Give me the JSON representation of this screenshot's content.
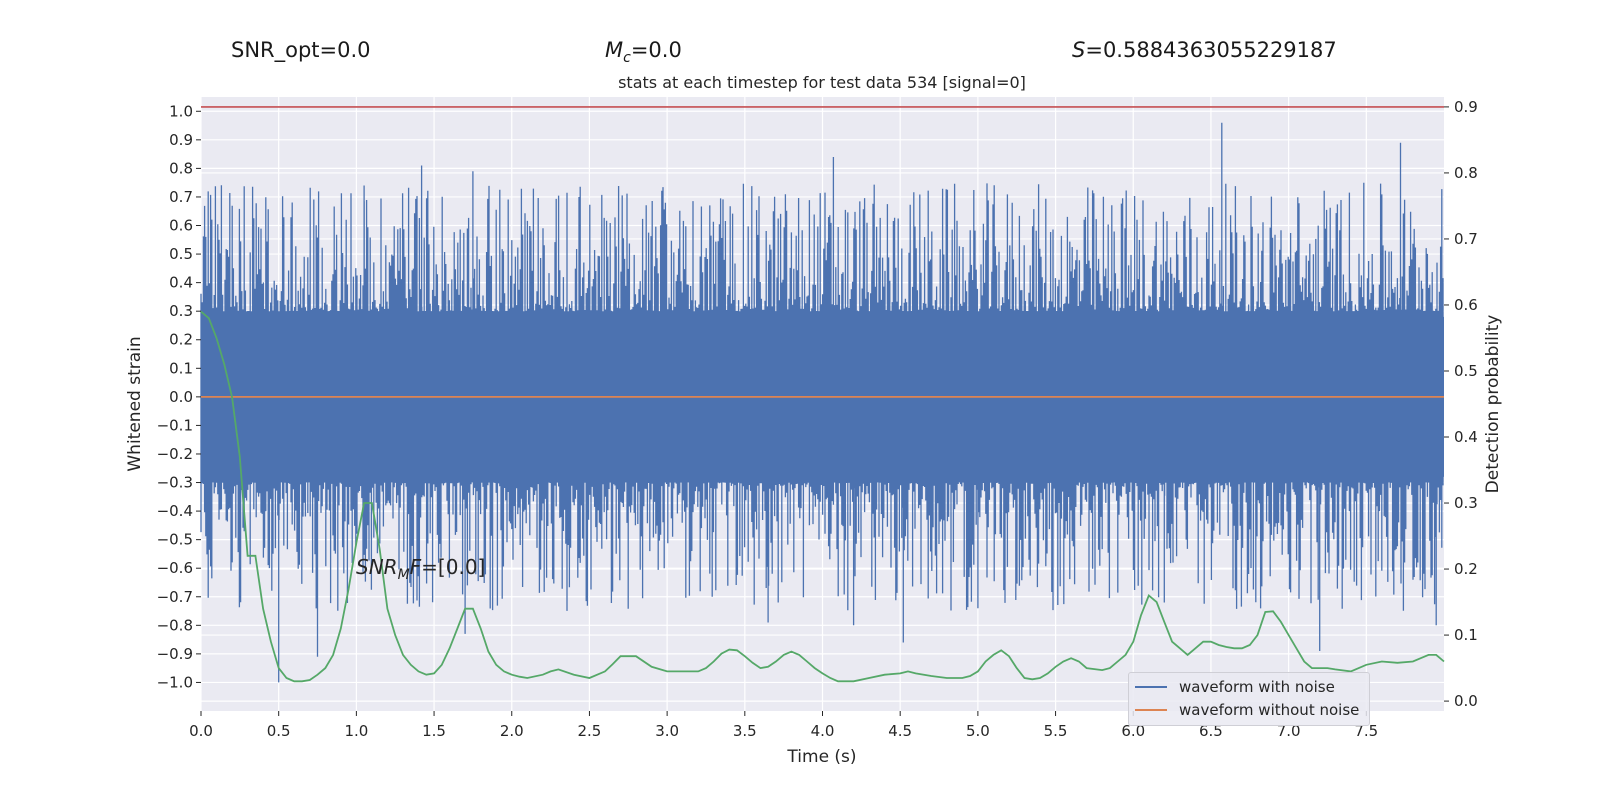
{
  "header": {
    "snr_opt": "SNR_opt=0.0",
    "mc_symbol": "M",
    "mc_sub": "c",
    "mc_value": "=0.0",
    "s_symbol": "S",
    "s_value": "=0.5884363055229187"
  },
  "chart_data": {
    "type": "line",
    "title": "stats at each timestep for test data 534 [signal=0]",
    "xlabel": "Time (s)",
    "ylabel": "Whitened strain",
    "y2label": "Detection probability",
    "xlim": [
      0.0,
      8.0
    ],
    "ylim": [
      -1.1,
      1.05
    ],
    "y2lim": [
      -0.015,
      0.915
    ],
    "x_ticks": [
      "0.0",
      "0.5",
      "1.0",
      "1.5",
      "2.0",
      "2.5",
      "3.0",
      "3.5",
      "4.0",
      "4.5",
      "5.0",
      "5.5",
      "6.0",
      "6.5",
      "7.0",
      "7.5"
    ],
    "y_ticks": [
      "1.0",
      "0.9",
      "0.8",
      "0.7",
      "0.6",
      "0.5",
      "0.4",
      "0.3",
      "0.2",
      "0.1",
      "0.0",
      "−0.1",
      "−0.2",
      "−0.3",
      "−0.4",
      "−0.5",
      "−0.6",
      "−0.7",
      "−0.8",
      "−0.9",
      "−1.0"
    ],
    "y2_ticks": [
      "0.9",
      "0.8",
      "0.7",
      "0.6",
      "0.5",
      "0.4",
      "0.3",
      "0.2",
      "0.1",
      "0.0"
    ],
    "grid": true,
    "legend_position": "lower-right",
    "threshold": 0.9,
    "annotation": {
      "symbol": "SNR",
      "sub": "M",
      "tail": "F",
      "value": "=[0.0]",
      "x": 1.0,
      "y": -0.6
    },
    "series": [
      {
        "name": "waveform with noise",
        "color": "#4c72b0",
        "kind": "noise",
        "envelope_min": -1.0,
        "envelope_max": 0.95,
        "spikes": [
          {
            "x": 0.5,
            "y": -1.0
          },
          {
            "x": 0.75,
            "y": -0.91
          },
          {
            "x": 1.05,
            "y": 0.74
          },
          {
            "x": 1.42,
            "y": 0.81
          },
          {
            "x": 1.75,
            "y": 0.79
          },
          {
            "x": 1.7,
            "y": -0.83
          },
          {
            "x": 3.65,
            "y": -0.79
          },
          {
            "x": 4.07,
            "y": 0.84
          },
          {
            "x": 4.2,
            "y": -0.8
          },
          {
            "x": 4.52,
            "y": -0.86
          },
          {
            "x": 5.0,
            "y": -0.74
          },
          {
            "x": 6.57,
            "y": 0.96
          },
          {
            "x": 7.2,
            "y": -0.89
          },
          {
            "x": 7.72,
            "y": 0.89
          },
          {
            "x": 7.95,
            "y": -0.8
          },
          {
            "x": 6.2,
            "y": -0.72
          }
        ]
      },
      {
        "name": "waveform without noise",
        "color": "#dd8452",
        "kind": "line",
        "x": [
          0.0,
          8.0
        ],
        "y": [
          0.0,
          0.0
        ]
      },
      {
        "color": "#55a868",
        "axis": "right",
        "kind": "line",
        "x": [
          0.0,
          0.05,
          0.1,
          0.15,
          0.2,
          0.25,
          0.3,
          0.35,
          0.4,
          0.45,
          0.5,
          0.55,
          0.6,
          0.65,
          0.7,
          0.75,
          0.8,
          0.85,
          0.9,
          0.95,
          1.0,
          1.05,
          1.1,
          1.15,
          1.2,
          1.25,
          1.3,
          1.35,
          1.4,
          1.45,
          1.5,
          1.55,
          1.6,
          1.65,
          1.7,
          1.75,
          1.8,
          1.85,
          1.9,
          1.95,
          2.0,
          2.05,
          2.1,
          2.2,
          2.25,
          2.3,
          2.4,
          2.5,
          2.6,
          2.65,
          2.7,
          2.8,
          2.9,
          3.0,
          3.1,
          3.2,
          3.25,
          3.3,
          3.35,
          3.4,
          3.45,
          3.5,
          3.55,
          3.6,
          3.65,
          3.7,
          3.75,
          3.8,
          3.85,
          3.9,
          3.95,
          4.0,
          4.05,
          4.1,
          4.2,
          4.3,
          4.4,
          4.5,
          4.55,
          4.6,
          4.7,
          4.8,
          4.9,
          4.95,
          5.0,
          5.05,
          5.1,
          5.15,
          5.2,
          5.25,
          5.3,
          5.35,
          5.4,
          5.45,
          5.5,
          5.55,
          5.6,
          5.65,
          5.7,
          5.8,
          5.85,
          5.9,
          5.95,
          6.0,
          6.05,
          6.1,
          6.15,
          6.2,
          6.25,
          6.3,
          6.35,
          6.4,
          6.45,
          6.5,
          6.55,
          6.6,
          6.65,
          6.7,
          6.75,
          6.8,
          6.85,
          6.9,
          6.95,
          7.0,
          7.05,
          7.1,
          7.15,
          7.2,
          7.25,
          7.3,
          7.4,
          7.5,
          7.6,
          7.7,
          7.8,
          7.85,
          7.9,
          7.95,
          8.0
        ],
        "y": [
          0.59,
          0.58,
          0.55,
          0.51,
          0.46,
          0.37,
          0.22,
          0.22,
          0.14,
          0.09,
          0.05,
          0.035,
          0.03,
          0.03,
          0.032,
          0.04,
          0.05,
          0.07,
          0.11,
          0.17,
          0.24,
          0.3,
          0.3,
          0.23,
          0.14,
          0.1,
          0.07,
          0.055,
          0.045,
          0.04,
          0.042,
          0.055,
          0.08,
          0.11,
          0.14,
          0.14,
          0.11,
          0.075,
          0.055,
          0.045,
          0.04,
          0.037,
          0.035,
          0.04,
          0.045,
          0.048,
          0.04,
          0.035,
          0.045,
          0.056,
          0.068,
          0.068,
          0.052,
          0.045,
          0.045,
          0.045,
          0.05,
          0.06,
          0.072,
          0.078,
          0.077,
          0.068,
          0.058,
          0.05,
          0.052,
          0.06,
          0.07,
          0.075,
          0.07,
          0.06,
          0.05,
          0.042,
          0.035,
          0.03,
          0.03,
          0.035,
          0.04,
          0.042,
          0.045,
          0.042,
          0.038,
          0.035,
          0.035,
          0.038,
          0.045,
          0.06,
          0.07,
          0.077,
          0.068,
          0.05,
          0.035,
          0.033,
          0.035,
          0.042,
          0.052,
          0.06,
          0.065,
          0.06,
          0.05,
          0.047,
          0.05,
          0.06,
          0.07,
          0.09,
          0.13,
          0.16,
          0.15,
          0.12,
          0.09,
          0.08,
          0.07,
          0.08,
          0.09,
          0.09,
          0.085,
          0.082,
          0.08,
          0.08,
          0.085,
          0.1,
          0.135,
          0.136,
          0.12,
          0.1,
          0.08,
          0.06,
          0.05,
          0.05,
          0.05,
          0.048,
          0.045,
          0.055,
          0.06,
          0.058,
          0.06,
          0.065,
          0.07,
          0.07,
          0.06
        ]
      }
    ]
  }
}
